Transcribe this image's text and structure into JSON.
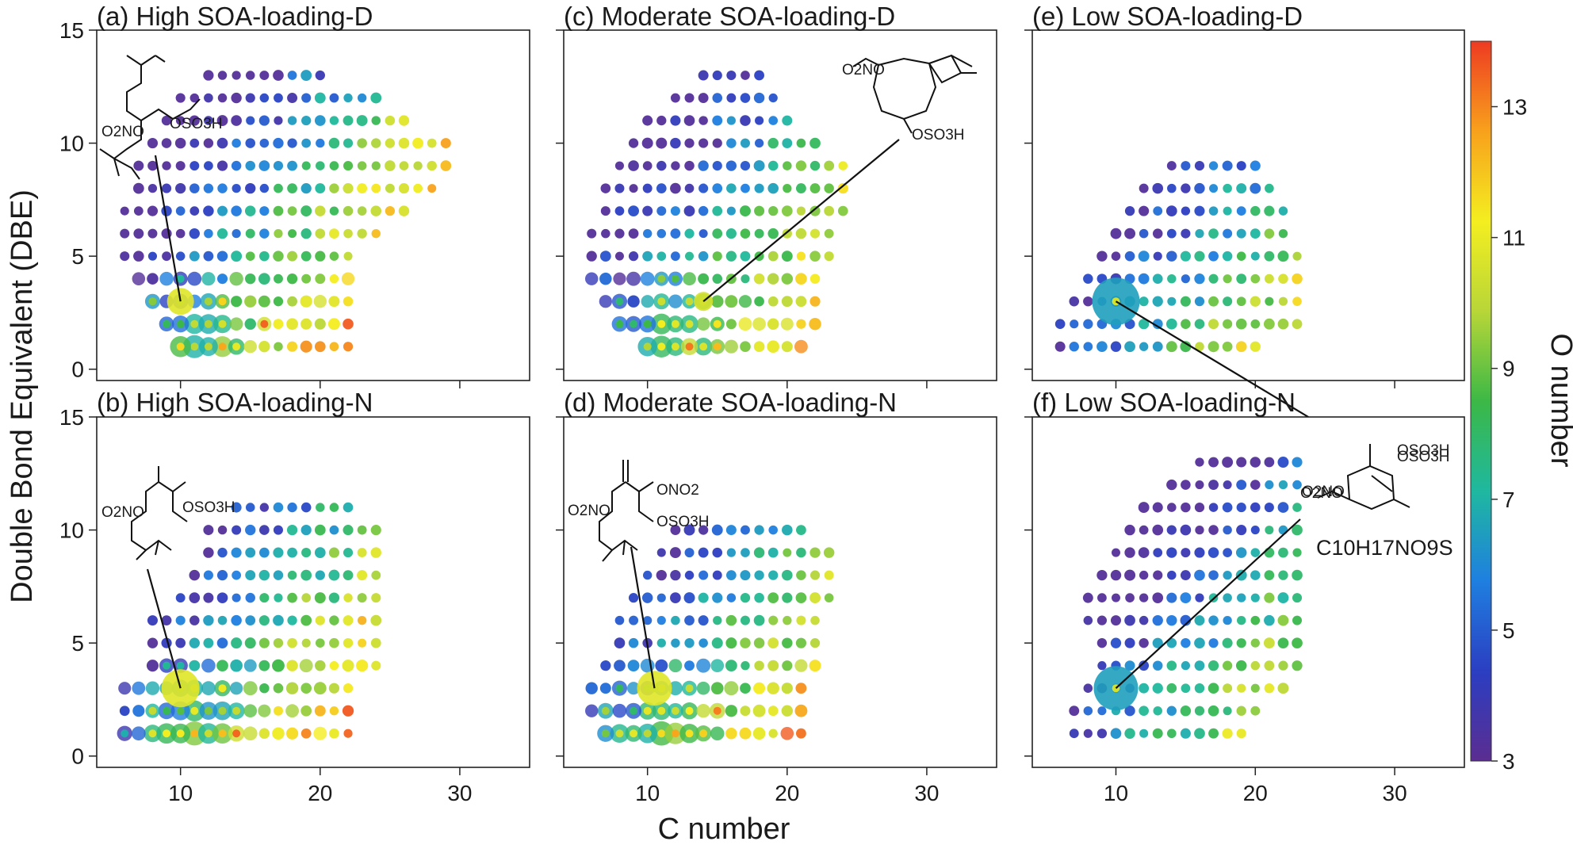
{
  "figure": {
    "ylabel": "Double Bond Equivalent (DBE)",
    "xlabel": "C number",
    "colorbar": {
      "label": "O number",
      "min": 3,
      "max": 14,
      "ticks": [
        3,
        5,
        7,
        9,
        11,
        13
      ],
      "tick_labels": [
        "3",
        "5",
        "7",
        "9",
        "11",
        "13"
      ],
      "colors": [
        "#5b2d91",
        "#2b3ec2",
        "#1f7fe0",
        "#1fb8a0",
        "#3cb846",
        "#b8d638",
        "#f4ee20",
        "#f8a11c",
        "#ee3b22"
      ]
    },
    "x_ticks": [
      10,
      20,
      30
    ],
    "x_tick_labels": [
      "10",
      "20",
      "30"
    ],
    "y_ticks": [
      0,
      5,
      10,
      15
    ],
    "y_tick_labels": [
      "0",
      "5",
      "10",
      "15"
    ]
  },
  "chart_data": [
    {
      "type": "scatter",
      "id": "a",
      "title": "(a) High SOA-loading-D",
      "xlim": [
        4,
        35
      ],
      "ylim": [
        -0.5,
        15
      ],
      "c_min": [
        10,
        9,
        8,
        7,
        6,
        6,
        6,
        7,
        7,
        8,
        9,
        10,
        12
      ],
      "c_max": [
        22,
        22,
        22,
        22,
        22,
        24,
        26,
        28,
        29,
        29,
        26,
        24,
        20
      ],
      "highlight": {
        "c": 10,
        "dbe": 3,
        "o": 10.8,
        "size": 17
      },
      "structure_formula": [
        "O2NO",
        "OSO3H"
      ]
    },
    {
      "type": "scatter",
      "id": "c",
      "title": "(c) Moderate SOA-loading-D",
      "xlim": [
        4,
        35
      ],
      "ylim": [
        -0.5,
        15
      ],
      "c_min": [
        10,
        8,
        7,
        6,
        6,
        6,
        7,
        7,
        8,
        9,
        10,
        12,
        14
      ],
      "c_max": [
        21,
        22,
        22,
        22,
        23,
        23,
        24,
        24,
        24,
        22,
        20,
        19,
        18
      ],
      "highlight": {
        "c": 14,
        "dbe": 3,
        "o": 10.5,
        "size": 12
      },
      "structure_formula": [
        "O2NO",
        "OSO3H"
      ]
    },
    {
      "type": "scatter",
      "id": "e",
      "title": "(e) Low SOA-loading-D",
      "xlim": [
        4,
        35
      ],
      "ylim": [
        -0.5,
        15
      ],
      "c_min": [
        6,
        6,
        7,
        8,
        9,
        10,
        11,
        12,
        14
      ],
      "c_max": [
        20,
        23,
        23,
        23,
        23,
        22,
        22,
        21,
        20
      ],
      "highlight": {
        "c": 10,
        "dbe": 3,
        "o": 6.5,
        "size": 30
      },
      "structure_formula": [
        "OSO3H",
        "O2NO"
      ]
    },
    {
      "type": "scatter",
      "id": "b",
      "title": "(b) High SOA-loading-N",
      "xlim": [
        4,
        35
      ],
      "ylim": [
        -0.5,
        15
      ],
      "c_min": [
        6,
        6,
        6,
        8,
        8,
        8,
        10,
        11,
        12,
        12,
        14
      ],
      "c_max": [
        22,
        22,
        22,
        24,
        24,
        24,
        24,
        24,
        24,
        24,
        22
      ],
      "highlight": {
        "c": 10,
        "dbe": 3,
        "o": 10.8,
        "size": 24
      },
      "structure_formula": [
        "O2NO",
        "OSO3H"
      ]
    },
    {
      "type": "scatter",
      "id": "d",
      "title": "(d) Moderate SOA-loading-N",
      "xlim": [
        4,
        35
      ],
      "ylim": [
        -0.5,
        15
      ],
      "c_min": [
        7,
        6,
        6,
        7,
        8,
        8,
        9,
        10,
        11,
        12
      ],
      "c_max": [
        21,
        21,
        21,
        22,
        22,
        22,
        23,
        23,
        23,
        21
      ],
      "highlight": {
        "c": 10.5,
        "dbe": 3,
        "o": 10.8,
        "size": 22
      },
      "structure_formula": [
        "ONO2",
        "O2NO",
        "OSO3H"
      ]
    },
    {
      "type": "scatter",
      "id": "f",
      "title": "(f) Low SOA-loading-N",
      "xlim": [
        4,
        35
      ],
      "ylim": [
        -0.5,
        15
      ],
      "c_min": [
        7,
        7,
        8,
        9,
        9,
        8,
        8,
        9,
        10,
        11,
        12,
        14,
        16
      ],
      "c_max": [
        19,
        20,
        22,
        23,
        23,
        23,
        23,
        23,
        23,
        23,
        23,
        23,
        23
      ],
      "highlight": {
        "c": 10,
        "dbe": 3,
        "o": 6.5,
        "size": 28
      },
      "structure_formula": [
        "OSO3H",
        "O2NO"
      ],
      "compound_label": "C10H17NO9S"
    }
  ]
}
